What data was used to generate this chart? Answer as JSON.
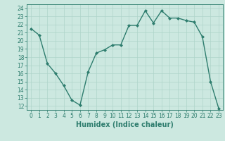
{
  "x": [
    0,
    1,
    2,
    3,
    4,
    5,
    6,
    7,
    8,
    9,
    10,
    11,
    12,
    13,
    14,
    15,
    16,
    17,
    18,
    19,
    20,
    21,
    22,
    23
  ],
  "y": [
    21.5,
    20.7,
    17.2,
    16.0,
    14.5,
    12.7,
    12.1,
    16.2,
    18.5,
    18.9,
    19.5,
    19.5,
    21.9,
    21.9,
    23.7,
    22.2,
    23.7,
    22.8,
    22.8,
    22.5,
    22.3,
    20.5,
    15.0,
    11.7
  ],
  "xlabel": "Humidex (Indice chaleur)",
  "xlim": [
    -0.5,
    23.5
  ],
  "ylim": [
    11.5,
    24.5
  ],
  "yticks": [
    12,
    13,
    14,
    15,
    16,
    17,
    18,
    19,
    20,
    21,
    22,
    23,
    24
  ],
  "xticks": [
    0,
    1,
    2,
    3,
    4,
    5,
    6,
    7,
    8,
    9,
    10,
    11,
    12,
    13,
    14,
    15,
    16,
    17,
    18,
    19,
    20,
    21,
    22,
    23
  ],
  "line_color": "#2e7d6e",
  "marker_size": 2.0,
  "bg_color": "#cce8e0",
  "grid_color": "#afd4ca",
  "tick_label_fontsize": 5.5,
  "xlabel_fontsize": 7.0,
  "line_width": 1.0
}
